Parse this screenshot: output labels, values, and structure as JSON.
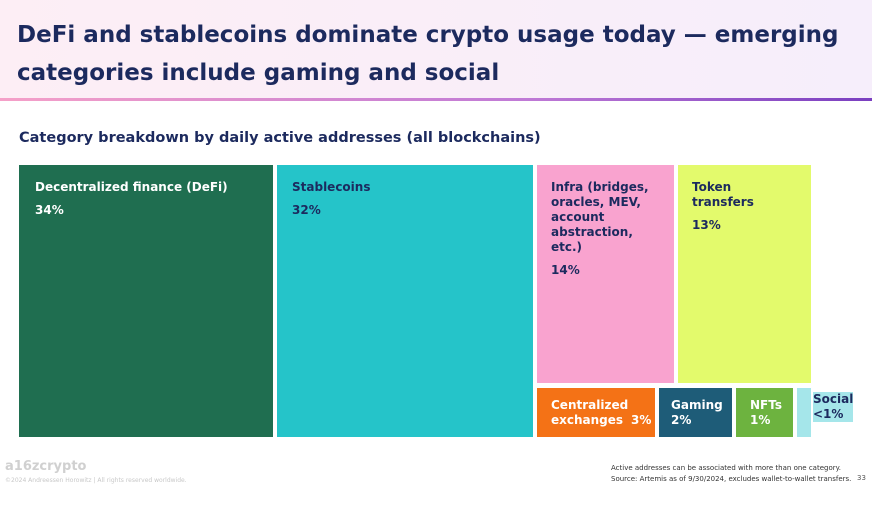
{
  "header": {
    "title": "DeFi and stablecoins dominate crypto usage today — emerging categories include gaming and social"
  },
  "chart_data": {
    "type": "treemap",
    "title": "Category breakdown by daily active addresses (all blockchains)",
    "categories": [
      {
        "name": "Decentralized finance (DeFi)",
        "value_label": "34%",
        "value": 34,
        "color": "#1f6e50",
        "text_color": "#ffffff"
      },
      {
        "name": "Stablecoins",
        "value_label": "32%",
        "value": 32,
        "color": "#25c4c9",
        "text_color": "#1c2a5e"
      },
      {
        "name": "Infra (bridges, oracles, MEV, account abstraction, etc.)",
        "value_label": "14%",
        "value": 14,
        "color": "#f9a3cf",
        "text_color": "#1c2a5e"
      },
      {
        "name": "Token transfers",
        "value_label": "13%",
        "value": 13,
        "color": "#e3fa6c",
        "text_color": "#1c2a5e"
      },
      {
        "name": "Centralized exchanges",
        "value_label": "3%",
        "value": 3,
        "color": "#f47216",
        "text_color": "#ffffff"
      },
      {
        "name": "Gaming",
        "value_label": "2%",
        "value": 2,
        "color": "#1e5c78",
        "text_color": "#ffffff"
      },
      {
        "name": "NFTs",
        "value_label": "1%",
        "value": 1,
        "color": "#6db33f",
        "text_color": "#ffffff"
      },
      {
        "name": "Social",
        "value_label": "<1%",
        "value": 0.5,
        "color": "#a5e6ea",
        "text_color": "#1c2a5e"
      }
    ]
  },
  "footer": {
    "logo": "a16zcrypto",
    "copyright": "©2024 Andreessen Horowitz  |  All rights reserved worldwide.",
    "note_1": "Active addresses can be associated with more than one category.",
    "note_2": "Source: Artemis as of 9/30/2024, excludes wallet-to-wallet transfers.",
    "page_number": "33"
  }
}
